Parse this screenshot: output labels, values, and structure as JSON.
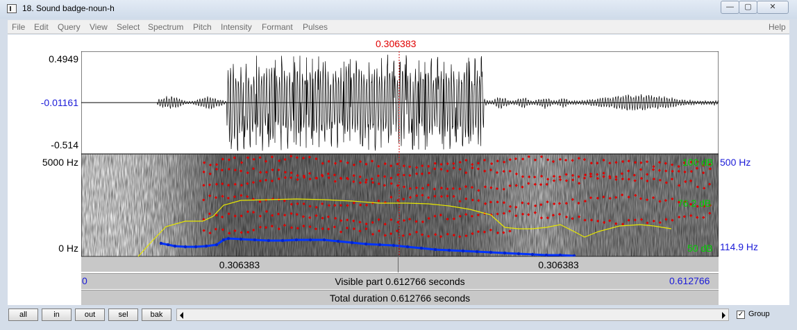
{
  "window": {
    "title": "18. Sound badge-noun-h",
    "controls": {
      "minimize": "—",
      "maximize": "▢",
      "close": "✕"
    }
  },
  "menu": [
    "File",
    "Edit",
    "Query",
    "View",
    "Select",
    "Spectrum",
    "Pitch",
    "Intensity",
    "Formant",
    "Pulses"
  ],
  "help": "Help",
  "cursor": {
    "time": "0.306383"
  },
  "waveform": {
    "max": "0.4949",
    "zero": "-0.01161",
    "min": "-0.514"
  },
  "spectrogram": {
    "top_freq": "5000 Hz",
    "bottom_freq": "0 Hz",
    "intensity_top": "100 dB",
    "intensity_mid": "76.2 dB",
    "intensity_bottom": "50 dB",
    "pitch_top": "500 Hz",
    "pitch_bottom": "114.9 Hz"
  },
  "selection_bar": {
    "left": "0.306383",
    "right": "0.306383"
  },
  "visible_bar": {
    "start": "0",
    "label": "Visible part 0.612766 seconds",
    "end": "0.612766"
  },
  "total_bar": {
    "label": "Total duration 0.612766 seconds"
  },
  "buttons": {
    "all": "all",
    "in": "in",
    "out": "out",
    "sel": "sel",
    "bak": "bak"
  },
  "group": {
    "label": "Group",
    "checked": true
  },
  "colors": {
    "cursor": "#e00000",
    "blue_text": "#1a1ad8",
    "green_text": "#00d000",
    "pitch": "#0033ff",
    "intensity": "#e8e800",
    "formant": "#e00000"
  }
}
